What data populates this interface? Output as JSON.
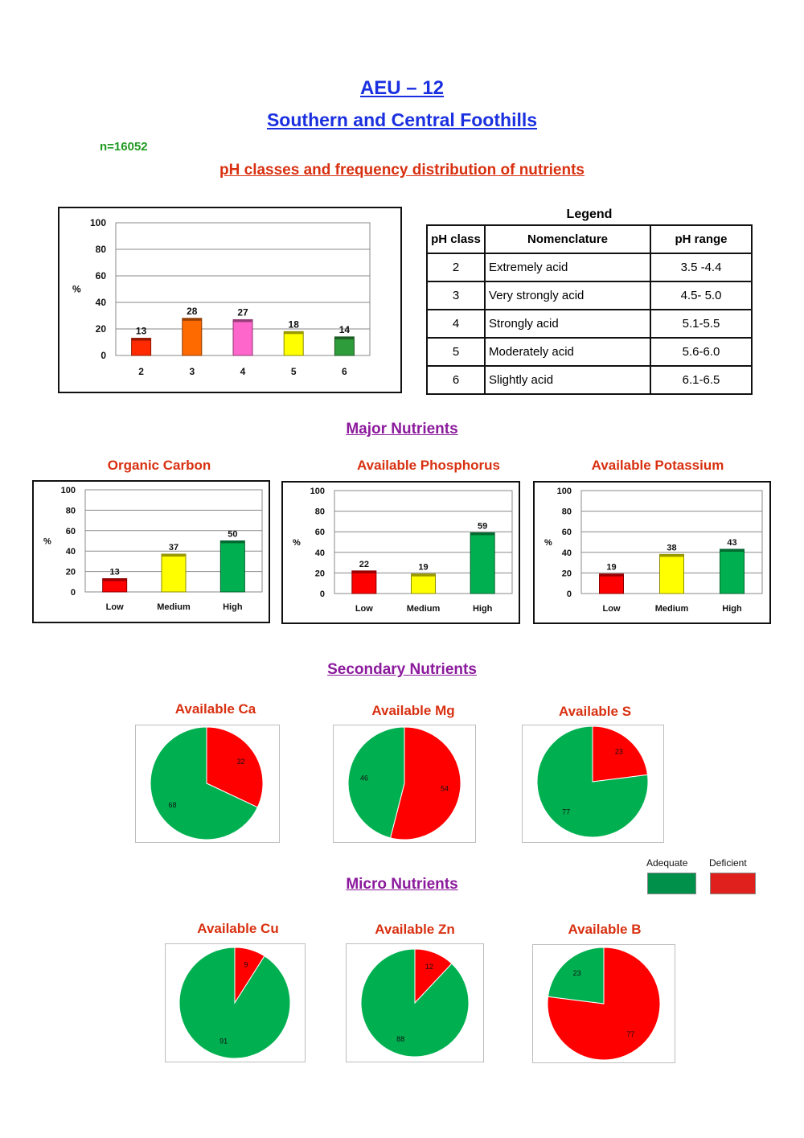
{
  "header": {
    "title": "AEU – 12",
    "subtitle": "Southern and Central Foothills",
    "sample_count": "n=16052",
    "ph_section_title": "pH classes and frequency distribution of nutrients",
    "major_title": "Major Nutrients",
    "secondary_title": "Secondary Nutrients",
    "micro_title": "Micro Nutrients"
  },
  "legend_table": {
    "caption": "Legend",
    "headers": [
      "pH class",
      "Nomenclature",
      "pH range"
    ],
    "rows": [
      [
        "2",
        "Extremely acid",
        "3.5 -4.4"
      ],
      [
        "3",
        "Very strongly acid",
        "4.5- 5.0"
      ],
      [
        "4",
        "Strongly acid",
        "5.1-5.5"
      ],
      [
        "5",
        "Moderately acid",
        "5.6-6.0"
      ],
      [
        "6",
        "Slightly acid",
        "6.1-6.5"
      ]
    ]
  },
  "pie_key": {
    "adequate_label": "Adequate",
    "deficient_label": "Deficient",
    "adequate_color": "#00b050",
    "deficient_color": "#ff0000"
  },
  "chart_data": [
    {
      "id": "ph",
      "type": "bar",
      "title": "",
      "ylabel": "%",
      "ylim": [
        0,
        100
      ],
      "yticks": [
        0,
        20,
        40,
        60,
        80,
        100
      ],
      "categories": [
        "2",
        "3",
        "4",
        "5",
        "6"
      ],
      "values": [
        13,
        28,
        27,
        18,
        14
      ],
      "colors": [
        "#ff2a00",
        "#ff6a00",
        "#ff66cc",
        "#ffff00",
        "#2e9c3a"
      ],
      "grid": true
    },
    {
      "id": "oc",
      "type": "bar",
      "title": "Organic Carbon",
      "ylabel": "%",
      "ylim": [
        0,
        100
      ],
      "yticks": [
        0,
        20,
        40,
        60,
        80,
        100
      ],
      "categories": [
        "Low",
        "Medium",
        "High"
      ],
      "values": [
        13,
        37,
        50
      ],
      "colors": [
        "#ff0000",
        "#ffff00",
        "#00b050"
      ],
      "grid": true
    },
    {
      "id": "p",
      "type": "bar",
      "title": "Available Phosphorus",
      "ylabel": "%",
      "ylim": [
        0,
        100
      ],
      "yticks": [
        0,
        20,
        40,
        60,
        80,
        100
      ],
      "categories": [
        "Low",
        "Medium",
        "High"
      ],
      "values": [
        22,
        19,
        59
      ],
      "colors": [
        "#ff0000",
        "#ffff00",
        "#00b050"
      ],
      "grid": true
    },
    {
      "id": "k",
      "type": "bar",
      "title": "Available Potassium",
      "ylabel": "%",
      "ylim": [
        0,
        100
      ],
      "yticks": [
        0,
        20,
        40,
        60,
        80,
        100
      ],
      "categories": [
        "Low",
        "Medium",
        "High"
      ],
      "values": [
        19,
        38,
        43
      ],
      "colors": [
        "#ff0000",
        "#ffff00",
        "#00b050"
      ],
      "grid": true
    },
    {
      "id": "ca",
      "type": "pie",
      "title": "Available Ca",
      "labels": [
        "Deficient",
        "Adequate"
      ],
      "values": [
        32,
        68
      ],
      "colors": [
        "#ff0000",
        "#00b050"
      ]
    },
    {
      "id": "mg",
      "type": "pie",
      "title": "Available Mg",
      "labels": [
        "Deficient",
        "Adequate"
      ],
      "values": [
        54,
        46
      ],
      "colors": [
        "#ff0000",
        "#00b050"
      ]
    },
    {
      "id": "s",
      "type": "pie",
      "title": "Available S",
      "labels": [
        "Deficient",
        "Adequate"
      ],
      "values": [
        23,
        77
      ],
      "colors": [
        "#ff0000",
        "#00b050"
      ]
    },
    {
      "id": "cu",
      "type": "pie",
      "title": "Available Cu",
      "labels": [
        "Deficient",
        "Adequate"
      ],
      "values": [
        9,
        91
      ],
      "colors": [
        "#ff0000",
        "#00b050"
      ]
    },
    {
      "id": "zn",
      "type": "pie",
      "title": "Available Zn",
      "labels": [
        "Deficient",
        "Adequate"
      ],
      "values": [
        12,
        88
      ],
      "colors": [
        "#ff0000",
        "#00b050"
      ]
    },
    {
      "id": "b",
      "type": "pie",
      "title": "Available B",
      "labels": [
        "Deficient",
        "Adequate"
      ],
      "values": [
        77,
        23
      ],
      "colors": [
        "#ff0000",
        "#00b050"
      ]
    }
  ]
}
